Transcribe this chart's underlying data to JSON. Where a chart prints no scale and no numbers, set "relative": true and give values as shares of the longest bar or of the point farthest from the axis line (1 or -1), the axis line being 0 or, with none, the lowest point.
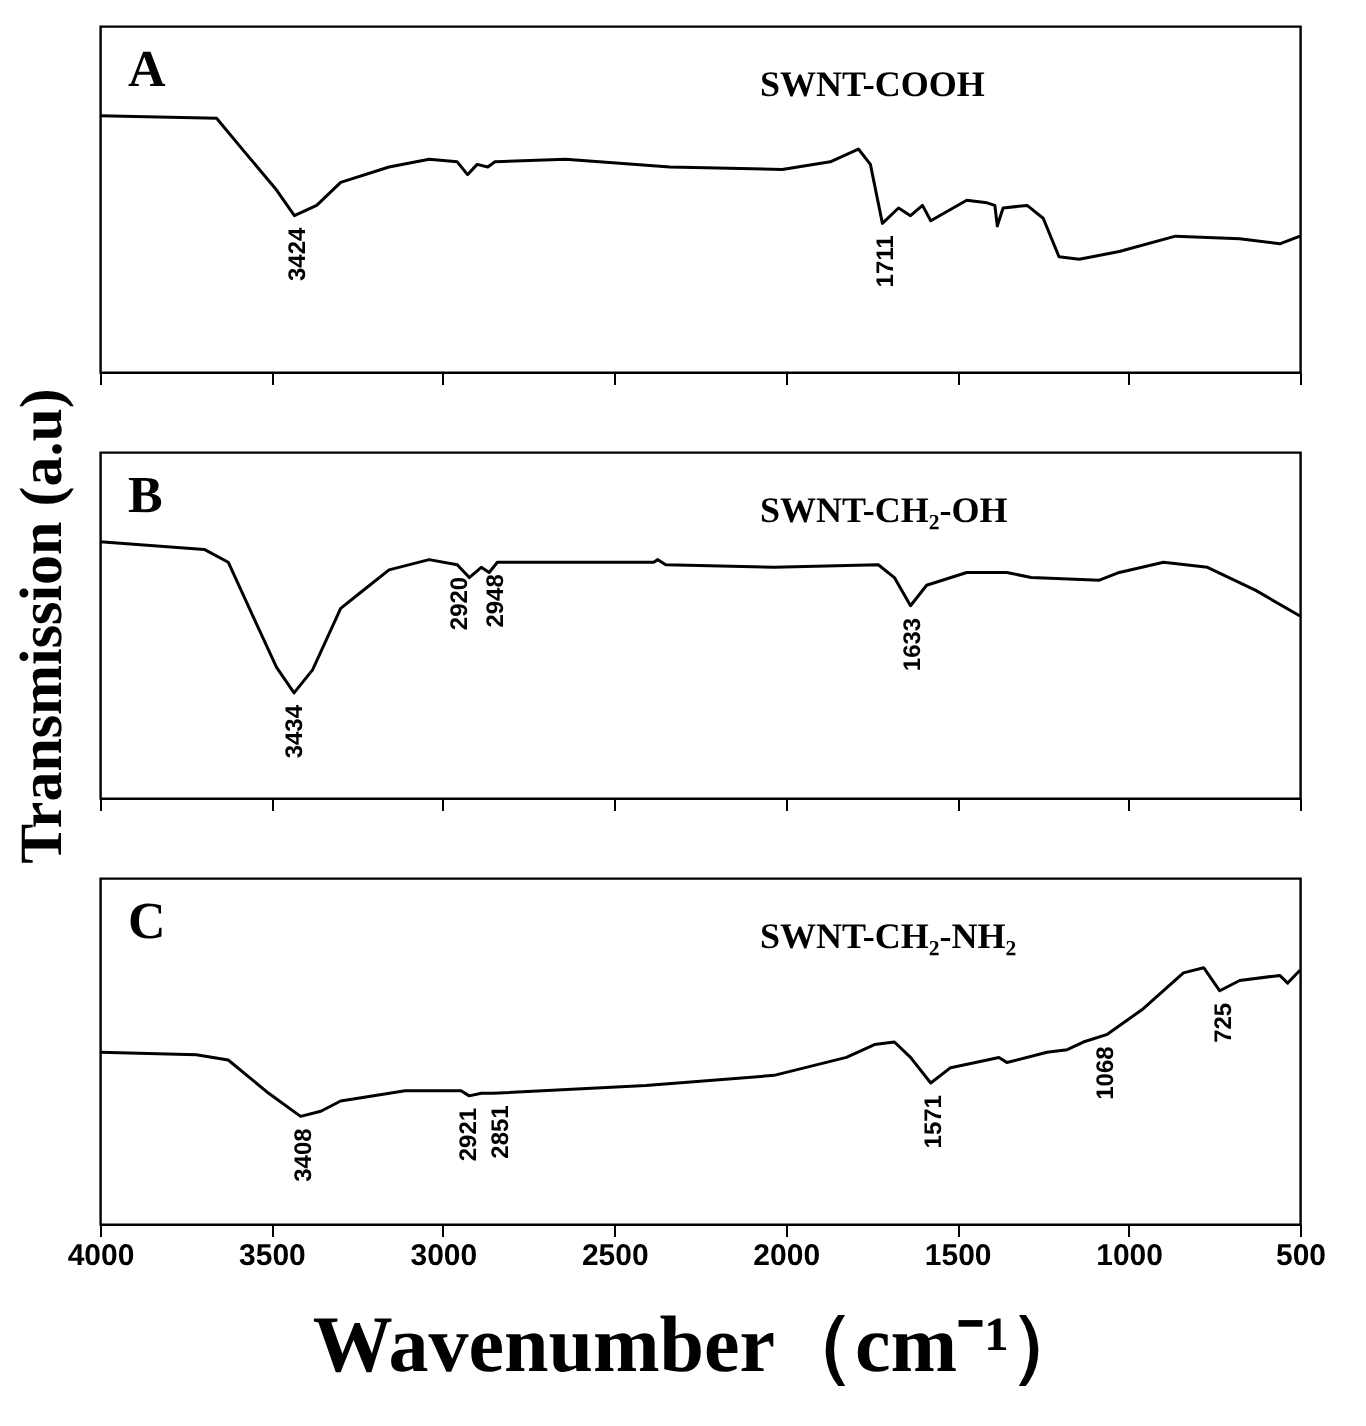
{
  "chart_data": [
    {
      "type": "line",
      "relative": true,
      "tick_labels": false,
      "grid": false,
      "xlim": [
        4000,
        500
      ],
      "xticks": [
        4000,
        3500,
        3000,
        2500,
        2000,
        1500,
        1000,
        500
      ],
      "series": [
        {
          "color": "#000000",
          "x": [
            4000,
            3660,
            3579,
            3485,
            3433,
            3368,
            3298,
            3157,
            3040,
            2958,
            2928,
            2900,
            2869,
            2848,
            2642,
            2338,
            2010,
            1870,
            1788,
            1753,
            1718,
            1671,
            1636,
            1601,
            1577,
            1472,
            1413,
            1390,
            1383,
            1366,
            1296,
            1249,
            1203,
            1144,
            1027,
            863,
            676,
            559,
            500
          ],
          "values": [
            1.0,
            0.99,
            0.86,
            0.71,
            0.61,
            0.65,
            0.74,
            0.8,
            0.83,
            0.82,
            0.77,
            0.81,
            0.8,
            0.82,
            0.83,
            0.8,
            0.79,
            0.82,
            0.87,
            0.81,
            0.58,
            0.64,
            0.61,
            0.65,
            0.59,
            0.67,
            0.66,
            0.65,
            0.57,
            0.64,
            0.65,
            0.6,
            0.45,
            0.44,
            0.47,
            0.53,
            0.52,
            0.5,
            0.53
          ]
        }
      ],
      "annotations": [
        "A",
        "SWNT-COOH",
        {
          "text": "3424",
          "x": 3424,
          "y": 0.61
        },
        {
          "text": "1711",
          "x": 1711,
          "y": 0.58
        }
      ]
    },
    {
      "type": "line",
      "relative": true,
      "tick_labels": false,
      "grid": false,
      "ylabel": "Transmission (a.u)",
      "xlim": [
        4000,
        500
      ],
      "xticks": [
        4000,
        3500,
        3000,
        2500,
        2000,
        1500,
        1000,
        500
      ],
      "series": [
        {
          "color": "#000000",
          "x": [
            4000,
            3696,
            3626,
            3544,
            3485,
            3434,
            3380,
            3298,
            3251,
            3157,
            3040,
            2958,
            2923,
            2888,
            2865,
            2841,
            2642,
            2385,
            2373,
            2350,
            2034,
            1730,
            1683,
            1636,
            1589,
            1472,
            1355,
            1284,
            1085,
            1027,
            898,
            770,
            629,
            500
          ],
          "values": [
            1.0,
            0.97,
            0.92,
            0.68,
            0.51,
            0.41,
            0.5,
            0.74,
            0.79,
            0.89,
            0.93,
            0.91,
            0.86,
            0.9,
            0.88,
            0.92,
            0.92,
            0.92,
            0.93,
            0.91,
            0.9,
            0.91,
            0.86,
            0.75,
            0.83,
            0.88,
            0.88,
            0.86,
            0.85,
            0.88,
            0.92,
            0.9,
            0.81,
            0.71
          ]
        }
      ],
      "annotations": [
        "B",
        "SWNT-CH₂-OH",
        {
          "text": "3434",
          "x": 3434,
          "y": 0.41
        },
        {
          "text": "2920",
          "x": 2952,
          "y": 0.91
        },
        {
          "text": "2948",
          "x": 2848,
          "y": 0.92
        },
        {
          "text": "1633",
          "x": 1633,
          "y": 0.75
        }
      ]
    },
    {
      "type": "line",
      "relative": true,
      "tick_labels": "x",
      "grid": false,
      "xlabel": "Wavenumber（cm⁻¹）",
      "xlim": [
        4000,
        500
      ],
      "xticks": [
        4000,
        3500,
        3000,
        2500,
        2000,
        1500,
        1000,
        500
      ],
      "series": [
        {
          "color": "#000000",
          "x": [
            4000,
            3719,
            3626,
            3508,
            3415,
            3356,
            3298,
            3110,
            2947,
            2923,
            2888,
            2853,
            2408,
            2034,
            1823,
            1741,
            1683,
            1636,
            1577,
            1519,
            1378,
            1355,
            1238,
            1179,
            1132,
            1062,
            957,
            840,
            781,
            734,
            676,
            559,
            536,
            500
          ],
          "values": [
            0.67,
            0.66,
            0.64,
            0.51,
            0.42,
            0.44,
            0.48,
            0.52,
            0.52,
            0.5,
            0.51,
            0.51,
            0.54,
            0.58,
            0.65,
            0.7,
            0.71,
            0.65,
            0.55,
            0.61,
            0.65,
            0.63,
            0.67,
            0.68,
            0.71,
            0.74,
            0.84,
            0.98,
            1.0,
            0.91,
            0.95,
            0.97,
            0.94,
            0.99
          ]
        }
      ],
      "annotations": [
        "C",
        "SWNT-CH₂-NH₂",
        {
          "text": "3408",
          "x": 3408,
          "y": 0.42
        },
        {
          "text": "2921",
          "x": 2928,
          "y": 0.5
        },
        {
          "text": "2851",
          "x": 2834,
          "y": 0.51
        },
        {
          "text": "1571",
          "x": 1571,
          "y": 0.55
        },
        {
          "text": "1068",
          "x": 1068,
          "y": 0.74
        },
        {
          "text": "725",
          "x": 725,
          "y": 0.91
        }
      ]
    }
  ]
}
